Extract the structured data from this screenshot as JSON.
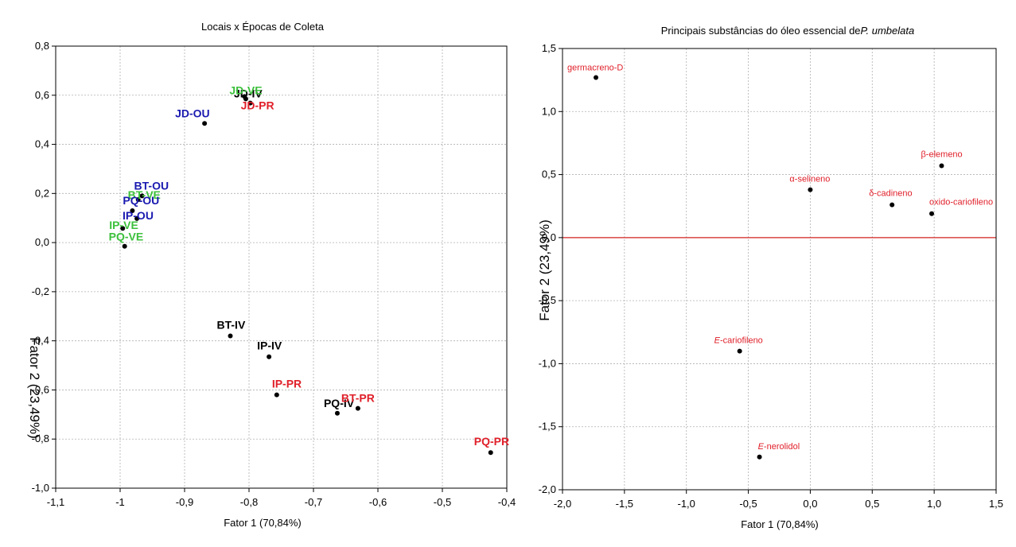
{
  "colors": {
    "red": "#e0202a",
    "blue": "#1a1ab0",
    "green": "#3cc03c",
    "black": "#000000",
    "refline": "#d42020"
  },
  "chart_data": [
    {
      "type": "scatter",
      "title": "Locais x Épocas de Coleta",
      "xlabel": "Fator 1 (70,84%)",
      "ylabel": "Fator 2 (23,49%)",
      "xlim": [
        -1.1,
        -0.4
      ],
      "ylim": [
        -1.0,
        0.8
      ],
      "xticks": [
        -1.1,
        -1.0,
        -0.9,
        -0.8,
        -0.7,
        -0.6,
        -0.5,
        -0.4
      ],
      "xtick_labels": [
        "-1,1",
        "-1",
        "-0,9",
        "-0,8",
        "-0,7",
        "-0,6",
        "-0,5",
        "-0,4"
      ],
      "yticks": [
        -1.0,
        -0.8,
        -0.6,
        -0.4,
        -0.2,
        0.0,
        0.2,
        0.4,
        0.6,
        0.8
      ],
      "ytick_labels": [
        "-1,0",
        "-0,8",
        "-0,6",
        "-0,4",
        "-0,2",
        "0,0",
        "0,2",
        "0,4",
        "0,6",
        "0,8"
      ],
      "grid": true,
      "points": [
        {
          "label": "JD-IV",
          "x": -0.805,
          "y": 0.585,
          "color": "black"
        },
        {
          "label": "JD-VE",
          "x": -0.807,
          "y": 0.595,
          "color": "green"
        },
        {
          "label": "JD-PR",
          "x": -0.798,
          "y": 0.568,
          "color": "red"
        },
        {
          "label": "JD-OU",
          "x": -0.869,
          "y": 0.485,
          "color": "blue"
        },
        {
          "label": "BT-OU",
          "x": -0.966,
          "y": 0.19,
          "color": "blue"
        },
        {
          "label": "BT-VE",
          "x": -0.972,
          "y": 0.175,
          "color": "green"
        },
        {
          "label": "PQ-OU",
          "x": -0.981,
          "y": 0.13,
          "color": "blue"
        },
        {
          "label": "IP-OU",
          "x": -0.974,
          "y": 0.098,
          "color": "blue"
        },
        {
          "label": "IP-VE",
          "x": -0.996,
          "y": 0.058,
          "color": "green"
        },
        {
          "label": "PQ-VE",
          "x": -0.993,
          "y": -0.015,
          "color": "green"
        },
        {
          "label": "BT-IV",
          "x": -0.829,
          "y": -0.38,
          "color": "black"
        },
        {
          "label": "IP-IV",
          "x": -0.769,
          "y": -0.465,
          "color": "black"
        },
        {
          "label": "IP-PR",
          "x": -0.757,
          "y": -0.62,
          "color": "red"
        },
        {
          "label": "PQ-IV",
          "x": -0.663,
          "y": -0.695,
          "color": "black"
        },
        {
          "label": "BT-PR",
          "x": -0.631,
          "y": -0.675,
          "color": "red"
        },
        {
          "label": "PQ-PR",
          "x": -0.425,
          "y": -0.855,
          "color": "red"
        }
      ]
    },
    {
      "type": "scatter",
      "title": "Principais substâncias do óleo essencial de",
      "title_italic": "P. umbelata",
      "xlabel": "Fator 1 (70,84%)",
      "ylabel": "Fator 2 (23,49%)",
      "xlim": [
        -2.0,
        1.5
      ],
      "ylim": [
        -2.0,
        1.5
      ],
      "xticks": [
        -2.0,
        -1.5,
        -1.0,
        -0.5,
        0.0,
        0.5,
        1.0,
        1.5
      ],
      "xtick_labels": [
        "-2,0",
        "-1,5",
        "-1,0",
        "-0,5",
        "0,0",
        "0,5",
        "1,0",
        "1,5"
      ],
      "yticks": [
        -2.0,
        -1.5,
        -1.0,
        -0.5,
        0.0,
        0.5,
        1.0,
        1.5
      ],
      "ytick_labels": [
        "-2,0",
        "-1,5",
        "-1,0",
        "-0,5",
        "0,0",
        "0,5",
        "1,0",
        "1,5"
      ],
      "grid": true,
      "reference_line_y": 0.0,
      "points": [
        {
          "label": "germacreno-D",
          "prefix": "",
          "x": -1.73,
          "y": 1.27
        },
        {
          "label": "β-elemeno",
          "prefix": "",
          "x": 1.06,
          "y": 0.57
        },
        {
          "label": "α-selineno",
          "prefix": "",
          "x": 0.0,
          "y": 0.38
        },
        {
          "label": "δ-cadineno",
          "prefix": "",
          "x": 0.66,
          "y": 0.26
        },
        {
          "label": "oxido-cariofileno",
          "prefix": "",
          "x": 0.98,
          "y": 0.19
        },
        {
          "label": "-cariofileno",
          "prefix": "E",
          "x": -0.57,
          "y": -0.9
        },
        {
          "label": "-nerolidol",
          "prefix": "E",
          "x": -0.41,
          "y": -1.74
        }
      ]
    }
  ]
}
